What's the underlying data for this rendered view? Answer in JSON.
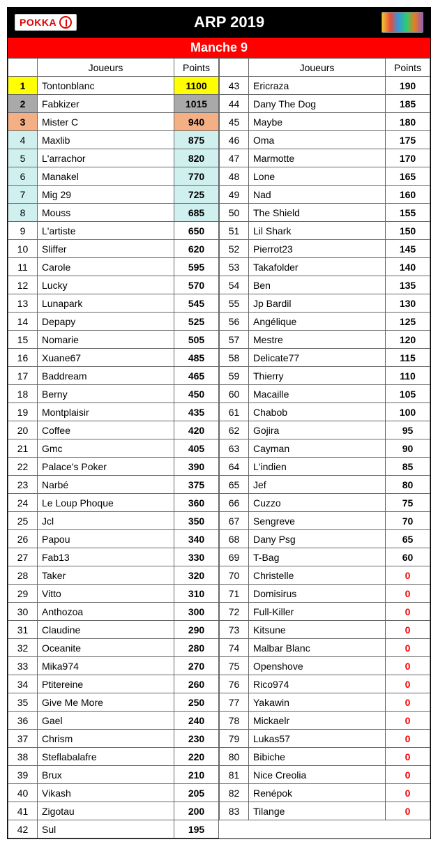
{
  "header": {
    "logo_text": "POKKA",
    "title": "ARP 2019",
    "subtitle": "Manche 9"
  },
  "colheaders": {
    "rank": "",
    "player": "Joueurs",
    "points": "Points"
  },
  "colors": {
    "header_bg": "#000000",
    "header_text": "#ffffff",
    "subheader_bg": "#ff0000",
    "subheader_text": "#ffffff",
    "hl_yellow": "#ffff00",
    "hl_grey": "#a9a9a9",
    "hl_orange": "#f4b084",
    "hl_cyan": "#d0f0f0",
    "zero_points": "#ff0000",
    "border": "#666666"
  },
  "left": [
    {
      "rank": "1",
      "player": "Tontonblanc",
      "points": "1100",
      "hl": "yellow"
    },
    {
      "rank": "2",
      "player": "Fabkizer",
      "points": "1015",
      "hl": "grey"
    },
    {
      "rank": "3",
      "player": "Mister C",
      "points": "940",
      "hl": "orange"
    },
    {
      "rank": "4",
      "player": "Maxlib",
      "points": "875",
      "hl": "cyan"
    },
    {
      "rank": "5",
      "player": "L'arrachor",
      "points": "820",
      "hl": "cyan"
    },
    {
      "rank": "6",
      "player": "Manakel",
      "points": "770",
      "hl": "cyan"
    },
    {
      "rank": "7",
      "player": "Mig 29",
      "points": "725",
      "hl": "cyan"
    },
    {
      "rank": "8",
      "player": "Mouss",
      "points": "685",
      "hl": "cyan"
    },
    {
      "rank": "9",
      "player": "L'artiste",
      "points": "650"
    },
    {
      "rank": "10",
      "player": "Sliffer",
      "points": "620"
    },
    {
      "rank": "11",
      "player": "Carole",
      "points": "595"
    },
    {
      "rank": "12",
      "player": "Lucky",
      "points": "570"
    },
    {
      "rank": "13",
      "player": "Lunapark",
      "points": "545"
    },
    {
      "rank": "14",
      "player": "Depapy",
      "points": "525"
    },
    {
      "rank": "15",
      "player": "Nomarie",
      "points": "505"
    },
    {
      "rank": "16",
      "player": "Xuane67",
      "points": "485"
    },
    {
      "rank": "17",
      "player": "Baddream",
      "points": "465"
    },
    {
      "rank": "18",
      "player": "Berny",
      "points": "450"
    },
    {
      "rank": "19",
      "player": "Montplaisir",
      "points": "435"
    },
    {
      "rank": "20",
      "player": "Coffee",
      "points": "420"
    },
    {
      "rank": "21",
      "player": "Gmc",
      "points": "405"
    },
    {
      "rank": "22",
      "player": "Palace's Poker",
      "points": "390"
    },
    {
      "rank": "23",
      "player": "Narbé",
      "points": "375"
    },
    {
      "rank": "24",
      "player": "Le Loup Phoque",
      "points": "360"
    },
    {
      "rank": "25",
      "player": "Jcl",
      "points": "350"
    },
    {
      "rank": "26",
      "player": "Papou",
      "points": "340"
    },
    {
      "rank": "27",
      "player": "Fab13",
      "points": "330"
    },
    {
      "rank": "28",
      "player": "Taker",
      "points": "320"
    },
    {
      "rank": "29",
      "player": "Vitto",
      "points": "310"
    },
    {
      "rank": "30",
      "player": "Anthozoa",
      "points": "300"
    },
    {
      "rank": "31",
      "player": "Claudine",
      "points": "290"
    },
    {
      "rank": "32",
      "player": "Oceanite",
      "points": "280"
    },
    {
      "rank": "33",
      "player": "Mika974",
      "points": "270"
    },
    {
      "rank": "34",
      "player": "Ptitereine",
      "points": "260"
    },
    {
      "rank": "35",
      "player": "Give Me More",
      "points": "250"
    },
    {
      "rank": "36",
      "player": "Gael",
      "points": "240"
    },
    {
      "rank": "37",
      "player": "Chrism",
      "points": "230"
    },
    {
      "rank": "38",
      "player": "Steflabalafre",
      "points": "220"
    },
    {
      "rank": "39",
      "player": "Brux",
      "points": "210"
    },
    {
      "rank": "40",
      "player": "Vikash",
      "points": "205"
    },
    {
      "rank": "41",
      "player": "Zigotau",
      "points": "200"
    },
    {
      "rank": "42",
      "player": "Sul",
      "points": "195"
    }
  ],
  "right": [
    {
      "rank": "43",
      "player": "Ericraza",
      "points": "190"
    },
    {
      "rank": "44",
      "player": "Dany The Dog",
      "points": "185"
    },
    {
      "rank": "45",
      "player": "Maybe",
      "points": "180"
    },
    {
      "rank": "46",
      "player": "Oma",
      "points": "175"
    },
    {
      "rank": "47",
      "player": "Marmotte",
      "points": "170"
    },
    {
      "rank": "48",
      "player": "Lone",
      "points": "165"
    },
    {
      "rank": "49",
      "player": "Nad",
      "points": "160"
    },
    {
      "rank": "50",
      "player": "The Shield",
      "points": "155"
    },
    {
      "rank": "51",
      "player": "Lil Shark",
      "points": "150"
    },
    {
      "rank": "52",
      "player": "Pierrot23",
      "points": "145"
    },
    {
      "rank": "53",
      "player": "Takafolder",
      "points": "140"
    },
    {
      "rank": "54",
      "player": "Ben",
      "points": "135"
    },
    {
      "rank": "55",
      "player": "Jp Bardil",
      "points": "130"
    },
    {
      "rank": "56",
      "player": "Angélique",
      "points": "125"
    },
    {
      "rank": "57",
      "player": "Mestre",
      "points": "120"
    },
    {
      "rank": "58",
      "player": "Delicate77",
      "points": "115"
    },
    {
      "rank": "59",
      "player": "Thierry",
      "points": "110"
    },
    {
      "rank": "60",
      "player": "Macaille",
      "points": "105"
    },
    {
      "rank": "61",
      "player": "Chabob",
      "points": "100"
    },
    {
      "rank": "62",
      "player": "Gojira",
      "points": "95"
    },
    {
      "rank": "63",
      "player": "Cayman",
      "points": "90"
    },
    {
      "rank": "64",
      "player": "L'indien",
      "points": "85"
    },
    {
      "rank": "65",
      "player": "Jef",
      "points": "80"
    },
    {
      "rank": "66",
      "player": "Cuzzo",
      "points": "75"
    },
    {
      "rank": "67",
      "player": "Sengreve",
      "points": "70"
    },
    {
      "rank": "68",
      "player": "Dany Psg",
      "points": "65"
    },
    {
      "rank": "69",
      "player": "T-Bag",
      "points": "60"
    },
    {
      "rank": "70",
      "player": "Christelle",
      "points": "0",
      "zero": true
    },
    {
      "rank": "71",
      "player": "Domisirus",
      "points": "0",
      "zero": true
    },
    {
      "rank": "72",
      "player": "Full-Killer",
      "points": "0",
      "zero": true
    },
    {
      "rank": "73",
      "player": "Kitsune",
      "points": "0",
      "zero": true
    },
    {
      "rank": "74",
      "player": "Malbar Blanc",
      "points": "0",
      "zero": true
    },
    {
      "rank": "75",
      "player": "Openshove",
      "points": "0",
      "zero": true
    },
    {
      "rank": "76",
      "player": "Rico974",
      "points": "0",
      "zero": true
    },
    {
      "rank": "77",
      "player": "Yakawin",
      "points": "0",
      "zero": true
    },
    {
      "rank": "78",
      "player": "Mickaelr",
      "points": "0",
      "zero": true
    },
    {
      "rank": "79",
      "player": "Lukas57",
      "points": "0",
      "zero": true
    },
    {
      "rank": "80",
      "player": "Bibiche",
      "points": "0",
      "zero": true
    },
    {
      "rank": "81",
      "player": "Nice Creolia",
      "points": "0",
      "zero": true
    },
    {
      "rank": "82",
      "player": "Renépok",
      "points": "0",
      "zero": true
    },
    {
      "rank": "83",
      "player": "Tilange",
      "points": "0",
      "zero": true
    }
  ]
}
